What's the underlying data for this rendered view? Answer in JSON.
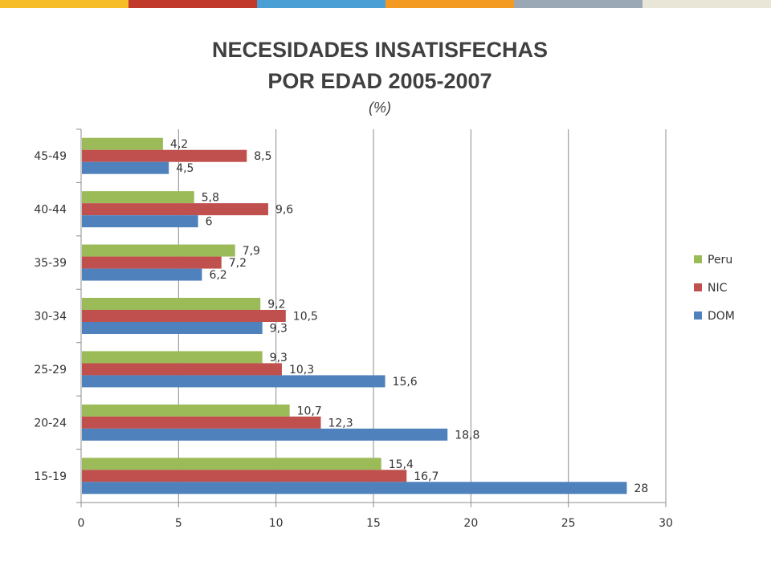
{
  "header_bar_colors": [
    "#f6bd29",
    "#c0392b",
    "#4a9fd5",
    "#f39a22",
    "#9aa7b4",
    "#e9e6d8"
  ],
  "title_line1": "NECESIDADES INSATISFECHAS",
  "title_line2": "POR EDAD  2005-2007",
  "subtitle": "(%)",
  "chart_data": {
    "type": "bar",
    "orientation": "horizontal",
    "title": "NECESIDADES INSATISFECHAS POR EDAD  2005-2007",
    "subtitle": "(%)",
    "categories": [
      "15-19",
      "20-24",
      "25-29",
      "30-34",
      "35-39",
      "40-44",
      "45-49"
    ],
    "series": [
      {
        "name": "DOM",
        "color": "#4f81bd",
        "values": [
          28,
          18.8,
          15.6,
          9.3,
          6.2,
          6,
          4.5
        ],
        "labels": [
          "28",
          "18,8",
          "15,6",
          "9,3",
          "6,2",
          "6",
          "4,5"
        ]
      },
      {
        "name": "NIC",
        "color": "#c0504d",
        "values": [
          16.7,
          12.3,
          10.3,
          10.5,
          7.2,
          9.6,
          8.5
        ],
        "labels": [
          "16,7",
          "12,3",
          "10,3",
          "10,5",
          "7,2",
          "9,6",
          "8,5"
        ]
      },
      {
        "name": "Peru",
        "color": "#9bbb59",
        "values": [
          15.4,
          10.7,
          9.3,
          9.2,
          7.9,
          5.8,
          4.2
        ],
        "labels": [
          "15,4",
          "10,7",
          "9,3",
          "9,2",
          "7,9",
          "5,8",
          "4,2"
        ]
      }
    ],
    "legend": [
      "Peru",
      "NIC",
      "DOM"
    ],
    "legend_position": "right",
    "xlim": [
      0,
      30
    ],
    "xticks": [
      "0",
      "5",
      "10",
      "15",
      "20",
      "25",
      "30"
    ],
    "grid": true
  }
}
